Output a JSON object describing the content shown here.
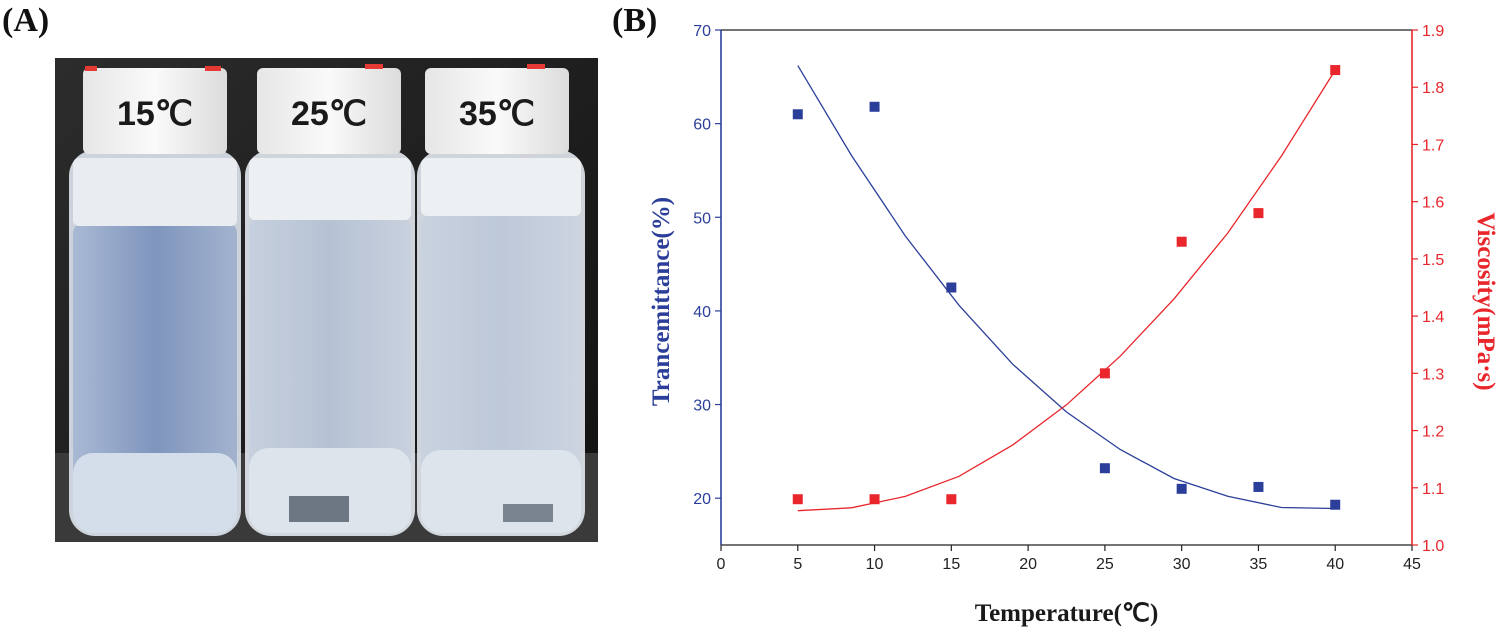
{
  "panels": {
    "a_label": "(A)",
    "b_label": "(B)"
  },
  "photo": {
    "bottles": [
      {
        "cap_label": "15℃"
      },
      {
        "cap_label": "25℃"
      },
      {
        "cap_label": "35℃"
      }
    ]
  },
  "chart_data": {
    "type": "scatter",
    "xlabel": "Temperature(℃)",
    "ylabel": "Trancemittance(%)",
    "y2label": "Viscosity(mPa·s)",
    "xlim": [
      0,
      45
    ],
    "ylim": [
      15,
      70
    ],
    "y2lim": [
      1.0,
      1.9
    ],
    "x_ticks": [
      0,
      5,
      10,
      15,
      20,
      25,
      30,
      35,
      40,
      45
    ],
    "y_ticks": [
      20,
      30,
      40,
      50,
      60,
      70
    ],
    "y2_ticks": [
      1.0,
      1.1,
      1.2,
      1.3,
      1.4,
      1.5,
      1.6,
      1.7,
      1.8,
      1.9
    ],
    "grid": false,
    "series": [
      {
        "axis": "left",
        "color": "#2b3f9a",
        "x": [
          5,
          10,
          15,
          25,
          30,
          35,
          40
        ],
        "values": [
          61.0,
          61.8,
          42.5,
          23.2,
          21.0,
          21.2,
          19.3
        ],
        "fit_x": [
          5,
          8.5,
          12,
          15.5,
          19,
          22.5,
          26,
          29.5,
          33,
          36.5,
          40
        ],
        "fit_values": [
          66.2,
          56.6,
          48.0,
          40.6,
          34.3,
          29.2,
          25.2,
          22.1,
          20.2,
          19.0,
          18.9
        ]
      },
      {
        "axis": "right",
        "color": "#e8262b",
        "x": [
          5,
          10,
          15,
          25,
          30,
          35,
          40
        ],
        "values": [
          1.08,
          1.08,
          1.08,
          1.3,
          1.53,
          1.58,
          1.83
        ],
        "fit_x": [
          5,
          8.5,
          12,
          15.5,
          19,
          22.5,
          26,
          29.5,
          33,
          36.5,
          40
        ],
        "fit_values": [
          1.06,
          1.065,
          1.085,
          1.12,
          1.175,
          1.245,
          1.33,
          1.43,
          1.545,
          1.68,
          1.83
        ]
      }
    ]
  }
}
